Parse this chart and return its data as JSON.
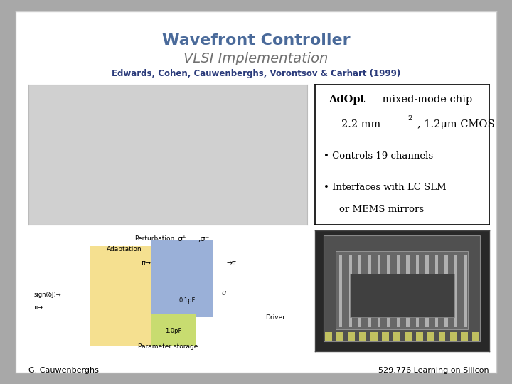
{
  "title_main": "Wavefront Controller",
  "title_sub": "VLSI Implementation",
  "title_authors": "Edwards, Cohen, Cauwenberghs, Vorontsov & Carhart (1999)",
  "bg_color": "#a8a8a8",
  "slide_bg": "#ffffff",
  "title_main_color": "#4a6a9a",
  "title_sub_color": "#707070",
  "title_authors_color": "#2a3a7a",
  "footer_left": "G. Cauwenberghs",
  "footer_right": "529.776 Learning on Silicon",
  "top_image_placeholder_color": "#d0d0d0",
  "yellow_color": "#f5e090",
  "blue_color": "#9ab0d8",
  "green_color": "#c8dc70"
}
